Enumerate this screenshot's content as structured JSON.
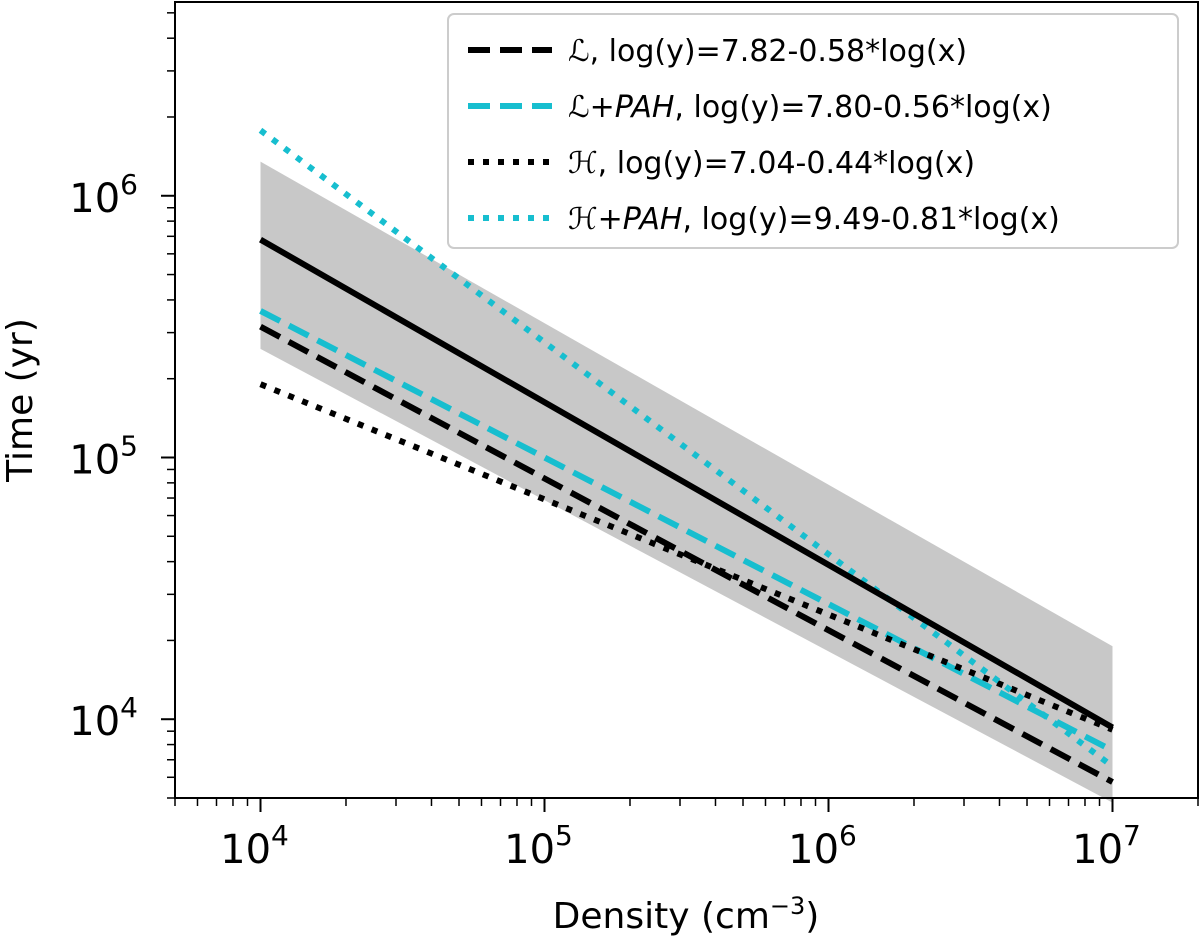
{
  "chart_data": {
    "type": "line",
    "xscale": "log",
    "yscale": "log",
    "xlim": [
      5000,
      20000000
    ],
    "ylim": [
      5000,
      5500000
    ],
    "xlabel": "Density (cm⁻³)",
    "ylabel": "Time (yr)",
    "x_ticks": [
      {
        "value": 10000,
        "base": "10",
        "exp": "4"
      },
      {
        "value": 100000,
        "base": "10",
        "exp": "5"
      },
      {
        "value": 1000000,
        "base": "10",
        "exp": "6"
      },
      {
        "value": 10000000,
        "base": "10",
        "exp": "7"
      }
    ],
    "y_ticks": [
      {
        "value": 10000,
        "base": "10",
        "exp": "4"
      },
      {
        "value": 100000,
        "base": "10",
        "exp": "5"
      },
      {
        "value": 1000000,
        "base": "10",
        "exp": "6"
      }
    ],
    "band": {
      "x": [
        10000,
        10000000
      ],
      "upper": [
        1350000,
        19000
      ],
      "lower": [
        260000,
        4800
      ],
      "color": "#c8c8c8"
    },
    "central_line": {
      "x": [
        10000,
        10000000
      ],
      "y": [
        680000,
        9300
      ],
      "color": "#000000",
      "style": "solid"
    },
    "series": [
      {
        "name": "ℒ",
        "formula": ", log(y)=7.82-0.58*log(x)",
        "intercept": 7.82,
        "slope": -0.58,
        "color": "#000000",
        "style": "dashed"
      },
      {
        "name": "ℒ+PAH",
        "formula": ", log(y)=7.80-0.56*log(x)",
        "intercept": 7.8,
        "slope": -0.56,
        "color": "#17becf",
        "style": "dashed"
      },
      {
        "name": "ℋ",
        "formula": ", log(y)=7.04-0.44*log(x)",
        "intercept": 7.04,
        "slope": -0.44,
        "color": "#000000",
        "style": "dotted"
      },
      {
        "name": "ℋ+PAH",
        "formula": ", log(y)=9.49-0.81*log(x)",
        "intercept": 9.49,
        "slope": -0.81,
        "color": "#17becf",
        "style": "dotted"
      }
    ],
    "series_x_range": [
      10000,
      10000000
    ],
    "legend_position": "top-right"
  }
}
